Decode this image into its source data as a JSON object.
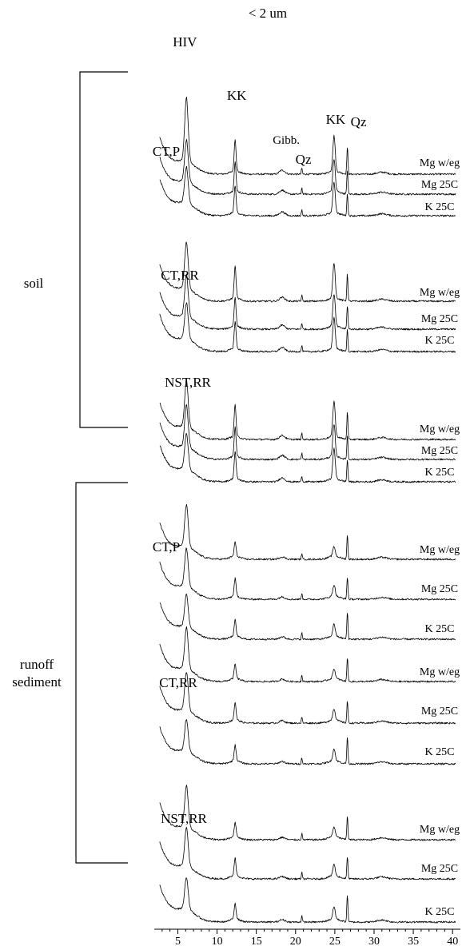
{
  "chart_data": {
    "type": "line",
    "title": "< 2 um",
    "xlabel": "",
    "ylabel": "",
    "xlim": [
      2,
      41
    ],
    "x_ticks": [
      5,
      10,
      15,
      20,
      25,
      30,
      35,
      40
    ],
    "peaks": [
      {
        "label": "HIV",
        "x": 6.1
      },
      {
        "label": "KK",
        "x": 12.3
      },
      {
        "label": "Gibb.",
        "x": 18.3
      },
      {
        "label": "Qz",
        "x": 20.8
      },
      {
        "label": "KK",
        "x": 24.9
      },
      {
        "label": "Qz",
        "x": 26.6
      }
    ],
    "groups": [
      {
        "name": "soil",
        "samples": [
          "CT,P",
          "CT,RR",
          "NST,RR"
        ]
      },
      {
        "name": "runoff sediment",
        "samples": [
          "CT,P",
          "CT,RR",
          "NST,RR"
        ]
      }
    ],
    "series": [
      {
        "group": "soil",
        "sample": "CT,P",
        "treatment": "Mg w/eg"
      },
      {
        "group": "soil",
        "sample": "CT,P",
        "treatment": "Mg 25C"
      },
      {
        "group": "soil",
        "sample": "CT,P",
        "treatment": "K 25C"
      },
      {
        "group": "soil",
        "sample": "CT,RR",
        "treatment": "Mg w/eg"
      },
      {
        "group": "soil",
        "sample": "CT,RR",
        "treatment": "Mg 25C"
      },
      {
        "group": "soil",
        "sample": "CT,RR",
        "treatment": "K 25C"
      },
      {
        "group": "soil",
        "sample": "NST,RR",
        "treatment": "Mg w/eg"
      },
      {
        "group": "soil",
        "sample": "NST,RR",
        "treatment": "Mg 25C"
      },
      {
        "group": "soil",
        "sample": "NST,RR",
        "treatment": "K 25C"
      },
      {
        "group": "runoff sediment",
        "sample": "CT,P",
        "treatment": "Mg w/eg"
      },
      {
        "group": "runoff sediment",
        "sample": "CT,P",
        "treatment": "Mg 25C"
      },
      {
        "group": "runoff sediment",
        "sample": "CT,P",
        "treatment": "K 25C"
      },
      {
        "group": "runoff sediment",
        "sample": "CT,RR",
        "treatment": "Mg w/eg"
      },
      {
        "group": "runoff sediment",
        "sample": "CT,RR",
        "treatment": "Mg 25C"
      },
      {
        "group": "runoff sediment",
        "sample": "CT,RR",
        "treatment": "K 25C"
      },
      {
        "group": "runoff sediment",
        "sample": "NST,RR",
        "treatment": "Mg w/eg"
      },
      {
        "group": "runoff sediment",
        "sample": "NST,RR",
        "treatment": "Mg 25C"
      },
      {
        "group": "runoff sediment",
        "sample": "NST,RR",
        "treatment": "K 25C"
      }
    ]
  }
}
